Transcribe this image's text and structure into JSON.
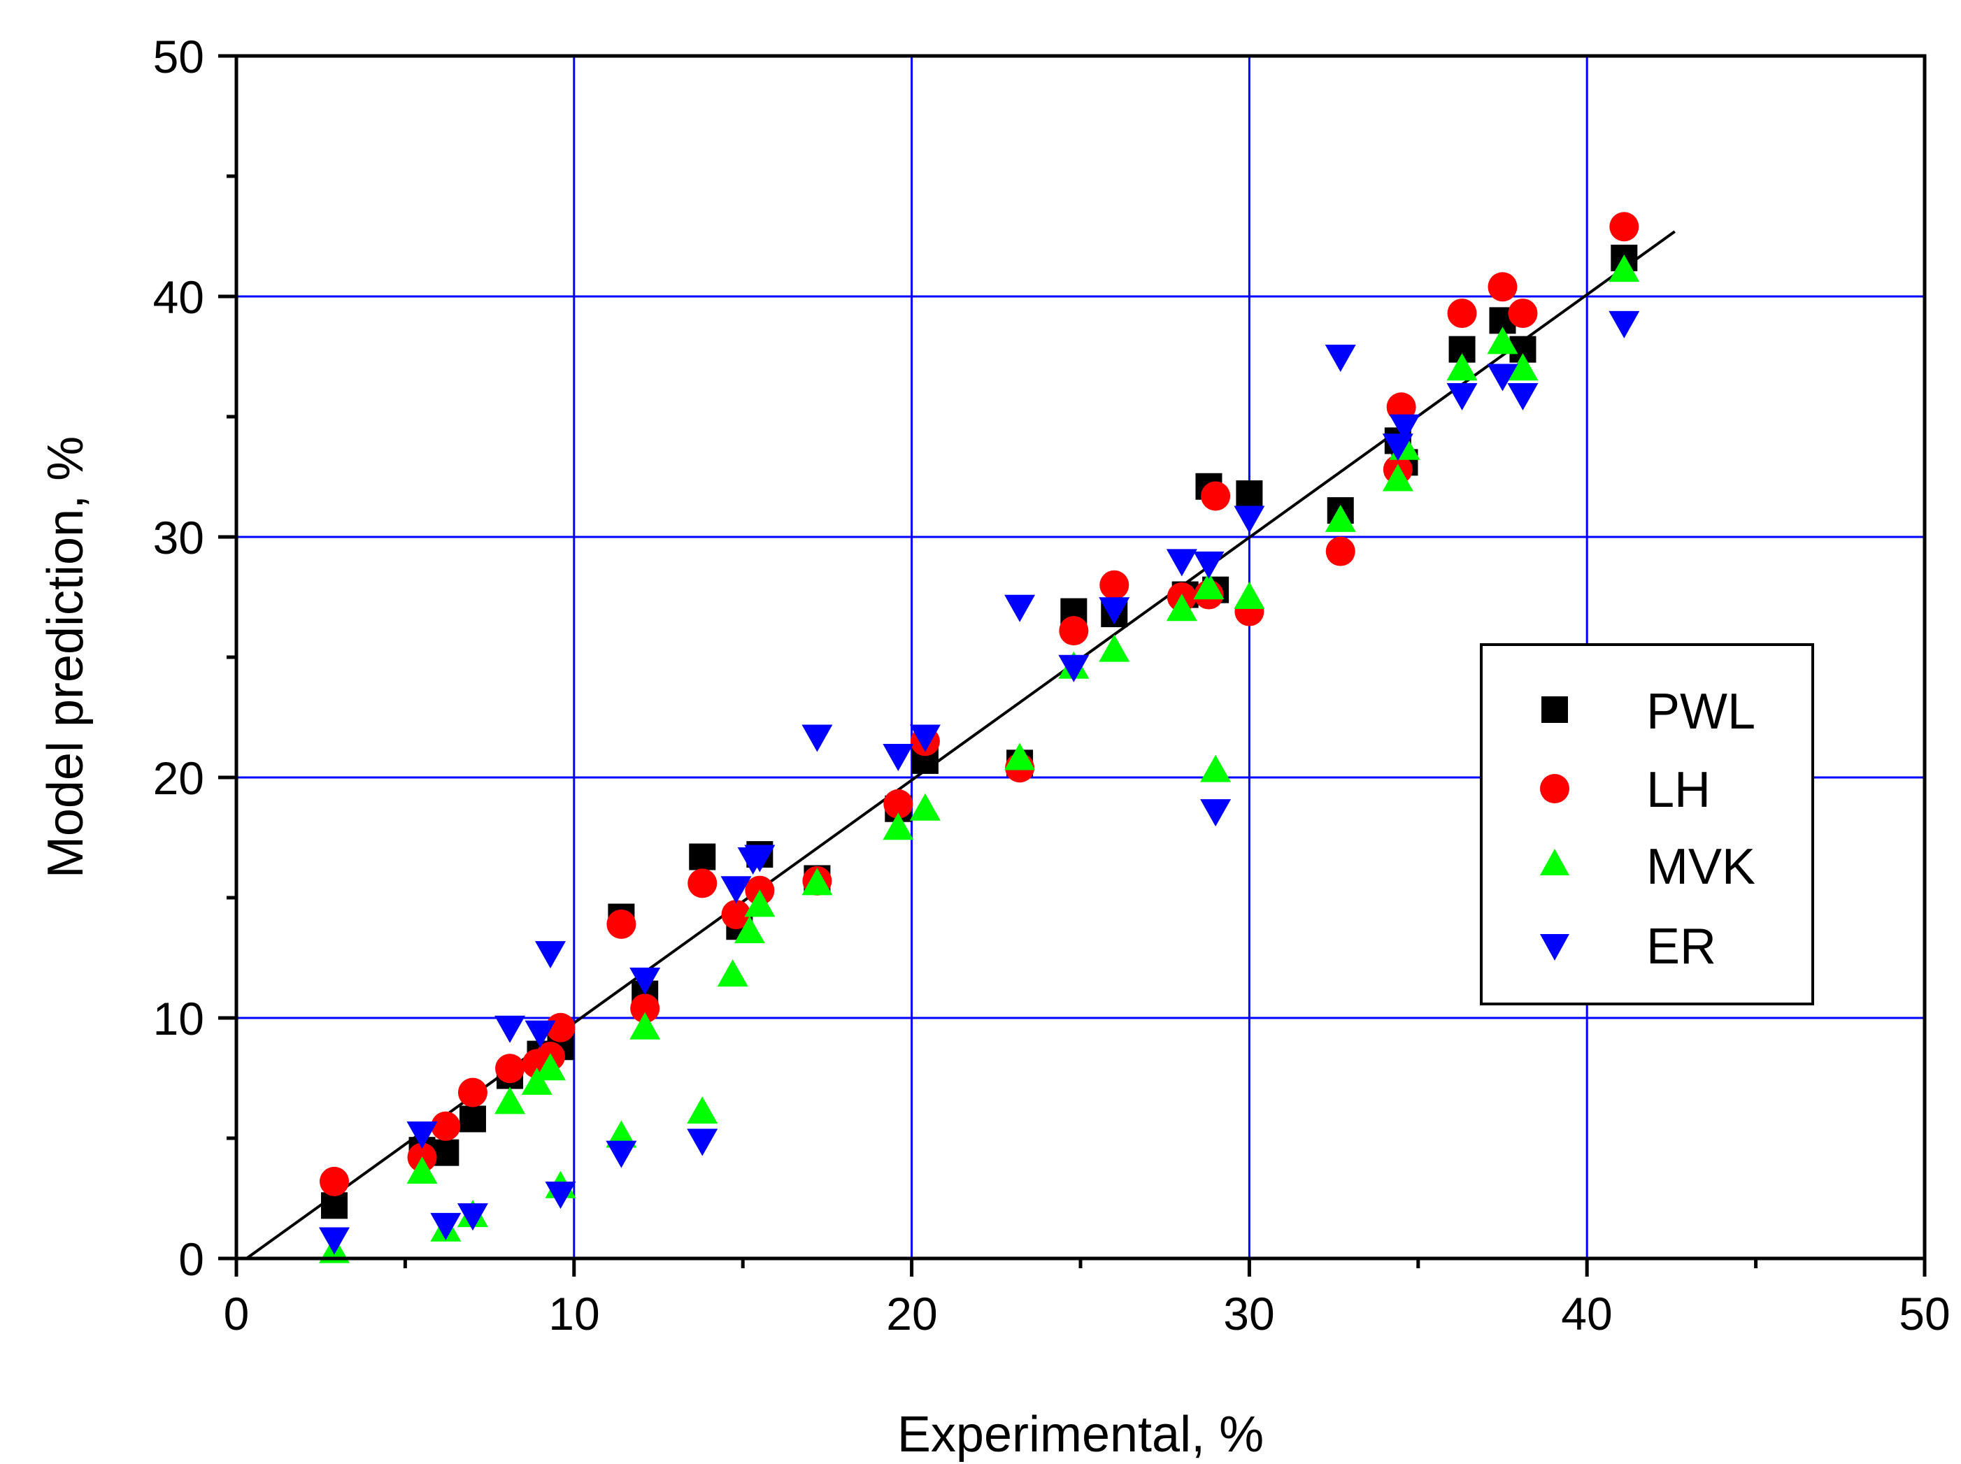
{
  "chart_data": {
    "type": "scatter",
    "title": "",
    "xlabel": "Experimental, %",
    "ylabel": "Model prediction, %",
    "xlim": [
      0,
      50
    ],
    "ylim": [
      0,
      50
    ],
    "xticks": [
      "0",
      "10",
      "20",
      "30",
      "40",
      "50"
    ],
    "yticks": [
      "0",
      "10",
      "20",
      "30",
      "40",
      "50"
    ],
    "grid": true,
    "grid_color": "#0000ff",
    "legend_position": "right",
    "fit_line": {
      "x": [
        0.3,
        42.6
      ],
      "y": [
        0.0,
        42.7
      ],
      "color": "#000000"
    },
    "series": [
      {
        "name": "PWL",
        "marker": "square",
        "color": "#000000",
        "x": [
          2.9,
          5.5,
          6.2,
          7.0,
          8.1,
          9.0,
          9.6,
          11.4,
          12.1,
          13.8,
          14.9,
          15.5,
          17.2,
          19.6,
          20.4,
          23.2,
          24.8,
          26.0,
          28.1,
          28.8,
          29.0,
          30.0,
          32.7,
          34.4,
          34.6,
          36.3,
          37.5,
          38.1,
          41.1
        ],
        "y": [
          2.2,
          4.5,
          4.4,
          5.8,
          7.6,
          8.5,
          8.8,
          14.2,
          11.0,
          16.7,
          13.8,
          16.8,
          15.8,
          18.7,
          20.7,
          20.6,
          26.9,
          26.8,
          27.6,
          32.1,
          27.8,
          31.8,
          31.1,
          34.0,
          33.1,
          37.8,
          39.0,
          37.8,
          41.6
        ]
      },
      {
        "name": "LH",
        "marker": "circle",
        "color": "#ff0000",
        "x": [
          2.9,
          5.5,
          6.2,
          7.0,
          8.1,
          8.9,
          9.3,
          9.6,
          11.4,
          12.1,
          13.8,
          14.8,
          15.5,
          17.2,
          19.6,
          20.4,
          23.2,
          24.8,
          26.0,
          28.0,
          28.8,
          29.0,
          30.0,
          32.7,
          34.4,
          34.5,
          36.3,
          37.5,
          38.1,
          41.1
        ],
        "y": [
          3.2,
          4.2,
          5.5,
          6.9,
          7.9,
          8.1,
          8.4,
          9.6,
          13.9,
          10.4,
          15.6,
          14.3,
          15.3,
          15.7,
          18.9,
          21.5,
          20.4,
          26.1,
          28.0,
          27.5,
          27.6,
          31.7,
          26.9,
          29.4,
          32.8,
          35.4,
          39.3,
          40.4,
          39.3,
          42.9
        ]
      },
      {
        "name": "MVK",
        "marker": "triangle-up",
        "color": "#00ff00",
        "x": [
          2.9,
          5.5,
          6.2,
          7.0,
          8.1,
          8.9,
          9.3,
          9.6,
          11.4,
          12.1,
          13.8,
          14.7,
          15.2,
          15.5,
          17.2,
          19.6,
          20.4,
          23.2,
          24.8,
          26.0,
          28.0,
          28.8,
          29.0,
          30.0,
          32.7,
          34.4,
          34.6,
          36.3,
          37.5,
          38.1,
          41.1
        ],
        "y": [
          0.3,
          3.6,
          1.2,
          1.8,
          6.5,
          7.3,
          7.9,
          3.0,
          5.1,
          9.6,
          6.1,
          11.8,
          13.6,
          14.7,
          15.6,
          17.9,
          18.7,
          20.8,
          24.6,
          25.3,
          27.0,
          27.9,
          20.3,
          27.5,
          30.7,
          32.4,
          33.7,
          37.0,
          38.1,
          37.0,
          41.1
        ]
      },
      {
        "name": "ER",
        "marker": "triangle-down",
        "color": "#0000ff",
        "x": [
          2.9,
          5.5,
          6.2,
          7.0,
          8.1,
          9.0,
          9.3,
          9.6,
          11.4,
          12.1,
          13.8,
          14.8,
          15.3,
          15.5,
          17.2,
          19.6,
          20.4,
          23.2,
          24.8,
          26.0,
          28.0,
          28.8,
          29.0,
          30.0,
          32.7,
          34.4,
          34.6,
          36.3,
          37.5,
          38.1,
          41.1
        ],
        "y": [
          0.8,
          5.2,
          1.4,
          1.8,
          9.6,
          9.4,
          12.7,
          2.7,
          4.4,
          11.6,
          4.9,
          15.4,
          16.6,
          16.7,
          21.7,
          20.9,
          21.7,
          27.1,
          24.6,
          27.0,
          29.0,
          28.9,
          18.6,
          30.8,
          37.5,
          33.8,
          34.6,
          35.9,
          36.7,
          35.9,
          38.9
        ]
      }
    ]
  }
}
